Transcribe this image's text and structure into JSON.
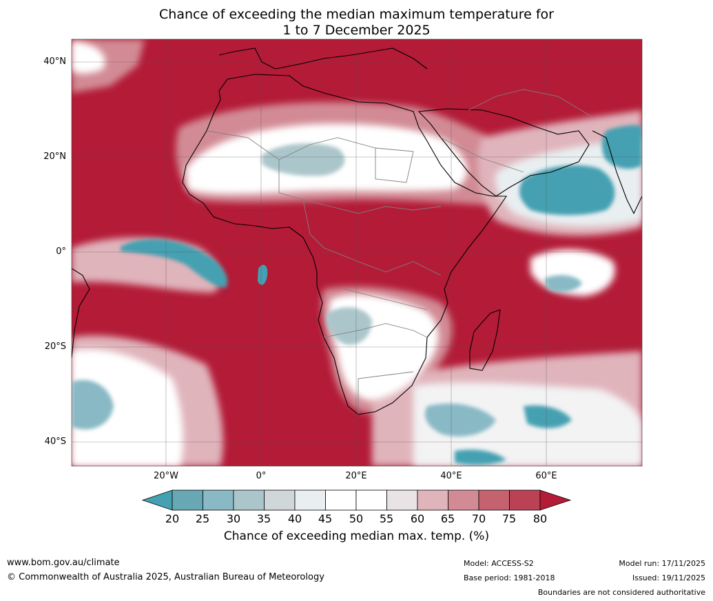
{
  "title": {
    "line1": "Chance of exceeding the median maximum temperature for",
    "line2": "1 to 7 December 2025"
  },
  "map": {
    "lon_range": [
      -40,
      80
    ],
    "lat_range": [
      -45,
      45
    ],
    "lat_labels": [
      {
        "lat": 40,
        "label": "40°N"
      },
      {
        "lat": 20,
        "label": "20°N"
      },
      {
        "lat": 0,
        "label": "0°"
      },
      {
        "lat": -20,
        "label": "20°S"
      },
      {
        "lat": -40,
        "label": "40°S"
      }
    ],
    "lon_labels": [
      {
        "lon": -20,
        "label": "20°W"
      },
      {
        "lon": 0,
        "label": "0°"
      },
      {
        "lon": 20,
        "label": "20°E"
      },
      {
        "lon": 40,
        "label": "40°E"
      },
      {
        "lon": 60,
        "label": "60°E"
      }
    ],
    "background_category": "80",
    "colors": {
      "hot": "#b31b37",
      "cool": "#44a0b0",
      "neutral": "#ffffff",
      "coast": "#000000",
      "border": "#808080",
      "grid": "#555555"
    }
  },
  "colorbar": {
    "labels": [
      "20",
      "25",
      "30",
      "35",
      "40",
      "45",
      "50",
      "55",
      "60",
      "65",
      "70",
      "75",
      "80"
    ],
    "colors": [
      "#45a0b1",
      "#67a8b4",
      "#88b9c5",
      "#abc6cb",
      "#d0d7d9",
      "#e9eff1",
      "#ffffff",
      "#ffffff",
      "#e9e3e6",
      "#e0b4bb",
      "#d28b95",
      "#c5626f",
      "#bb4254",
      "#b31b37"
    ],
    "title": "Chance of exceeding median max. temp. (%)"
  },
  "footer": {
    "url": "www.bom.gov.au/climate",
    "copyright": "© Commonwealth of Australia 2025, Australian Bureau of Meteorology",
    "model": "Model: ACCESS-S2",
    "base_period": "Base period: 1981-2018",
    "model_run": "Model run: 17/11/2025",
    "issued": "Issued: 19/11/2025",
    "disclaimer": "Boundaries are not considered authoritative"
  }
}
